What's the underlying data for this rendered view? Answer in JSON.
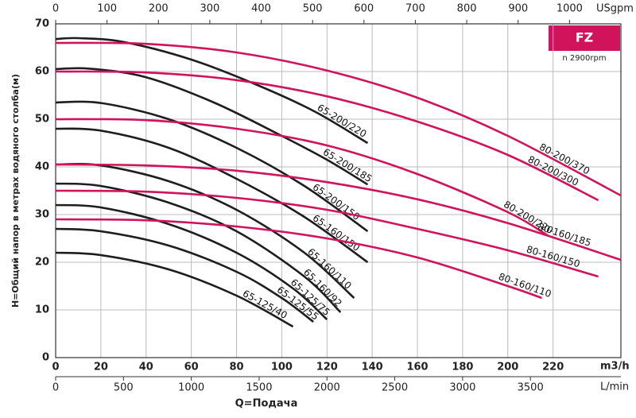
{
  "chart_data": {
    "type": "line",
    "badge": "FZ",
    "speed": "n  2900rpm",
    "y_label": "H=Общий напор в метрах водяного столба(м)",
    "x_label": "Q=Подача",
    "x_unit": "m3/h",
    "x2_unit": "L/min",
    "x3_unit": "USgpm",
    "xlim": [
      0,
      250
    ],
    "xticks": [
      0,
      20,
      40,
      60,
      80,
      100,
      120,
      140,
      160,
      180,
      200,
      220
    ],
    "x2lim": [
      0,
      4167
    ],
    "x2ticks": [
      0,
      500,
      1000,
      1500,
      2000,
      2500,
      3000,
      3500
    ],
    "x3lim": [
      0,
      1100
    ],
    "x3ticks": [
      0,
      100,
      200,
      300,
      400,
      500,
      600,
      700,
      800,
      900,
      1000
    ],
    "ylim": [
      0,
      70
    ],
    "yticks": [
      0,
      10,
      20,
      30,
      40,
      50,
      60,
      70
    ],
    "grid": true,
    "series": [
      {
        "name": "65-200/220",
        "color": "#1e1e1e",
        "x": [
          0,
          10,
          30,
          60,
          90,
          115,
          138
        ],
        "values": [
          66.8,
          67,
          66.2,
          62.5,
          57,
          51.5,
          45
        ]
      },
      {
        "name": "65-200/185",
        "color": "#1e1e1e",
        "x": [
          0,
          15,
          40,
          70,
          100,
          120,
          138
        ],
        "values": [
          60.5,
          60.6,
          58.8,
          53.5,
          46.5,
          41.5,
          36.3
        ]
      },
      {
        "name": "65-200/150",
        "color": "#1e1e1e",
        "x": [
          0,
          20,
          50,
          80,
          110,
          138
        ],
        "values": [
          53.5,
          53.4,
          50,
          44,
          36,
          26.5
        ]
      },
      {
        "name": "65-160/150",
        "color": "#1e1e1e",
        "x": [
          0,
          20,
          50,
          80,
          110,
          138
        ],
        "values": [
          48,
          47.6,
          44,
          37.5,
          29.5,
          20
        ]
      },
      {
        "name": "65-160/110",
        "color": "#1e1e1e",
        "x": [
          0,
          20,
          50,
          80,
          110,
          132
        ],
        "values": [
          40.5,
          40.3,
          37,
          31,
          22,
          12.5
        ]
      },
      {
        "name": "65-160/92",
        "color": "#1e1e1e",
        "x": [
          0,
          20,
          50,
          80,
          110,
          126
        ],
        "values": [
          36.5,
          36,
          32.5,
          26.5,
          17,
          9.5
        ]
      },
      {
        "name": "65-125/75",
        "color": "#1e1e1e",
        "x": [
          0,
          20,
          50,
          80,
          105,
          120
        ],
        "values": [
          32,
          31.5,
          28,
          22,
          14.5,
          8
        ]
      },
      {
        "name": "65-125/55",
        "color": "#1e1e1e",
        "x": [
          0,
          20,
          50,
          80,
          100,
          114
        ],
        "values": [
          27,
          26.5,
          23.5,
          18,
          12.5,
          7.5
        ]
      },
      {
        "name": "65-125/40",
        "color": "#1e1e1e",
        "x": [
          0,
          20,
          50,
          80,
          105
        ],
        "values": [
          22,
          21.5,
          18.5,
          13,
          6.5
        ]
      },
      {
        "name": "80-200/370",
        "color": "#d0135a",
        "x": [
          0,
          40,
          80,
          120,
          160,
          200,
          250
        ],
        "values": [
          66,
          65.8,
          64,
          60.2,
          54.5,
          46.5,
          34
        ]
      },
      {
        "name": "80-200/300",
        "color": "#d0135a",
        "x": [
          0,
          40,
          80,
          120,
          160,
          200,
          240
        ],
        "values": [
          60,
          59.8,
          58.2,
          54.8,
          49.5,
          42.5,
          33
        ]
      },
      {
        "name": "80-200/220",
        "color": "#d0135a",
        "x": [
          0,
          40,
          80,
          120,
          160,
          200,
          218
        ],
        "values": [
          50,
          49.8,
          48,
          44.5,
          38.5,
          30.5,
          25.5
        ]
      },
      {
        "name": "80-160/185",
        "color": "#d0135a",
        "x": [
          0,
          40,
          80,
          120,
          160,
          200,
          250
        ],
        "values": [
          40.5,
          40.3,
          39.2,
          36.8,
          33.2,
          28.2,
          20.5
        ]
      },
      {
        "name": "80-160/150",
        "color": "#d0135a",
        "x": [
          0,
          40,
          80,
          120,
          160,
          200,
          240
        ],
        "values": [
          35,
          34.8,
          33.5,
          31,
          27,
          22.5,
          17
        ]
      },
      {
        "name": "80-160/110",
        "color": "#d0135a",
        "x": [
          0,
          40,
          80,
          120,
          160,
          200,
          215
        ],
        "values": [
          29,
          28.8,
          27.5,
          25,
          21,
          15,
          12.5
        ]
      }
    ]
  }
}
